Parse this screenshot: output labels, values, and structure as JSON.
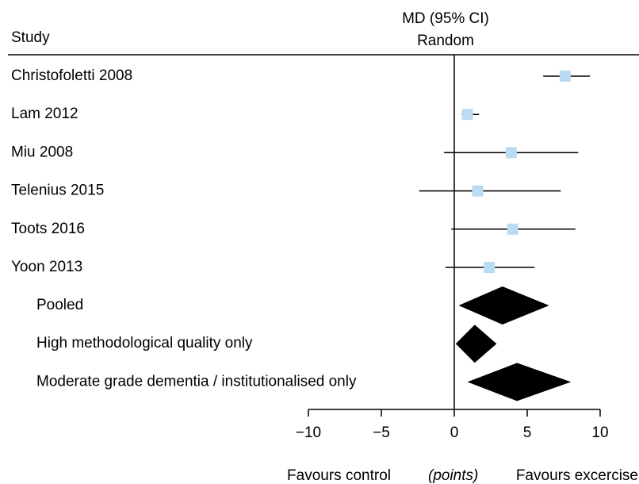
{
  "chart_data": {
    "type": "forest",
    "title": [
      "MD (95% CI)",
      "Random"
    ],
    "column_header": "Study",
    "studies": [
      {
        "name": "Christofoletti 2008",
        "estimate": 7.6,
        "lower": 6.1,
        "upper": 9.3
      },
      {
        "name": "Lam 2012",
        "estimate": 0.9,
        "lower": 0.5,
        "upper": 1.7
      },
      {
        "name": "Miu 2008",
        "estimate": 3.9,
        "lower": -0.7,
        "upper": 8.5
      },
      {
        "name": "Telenius 2015",
        "estimate": 1.6,
        "lower": -2.4,
        "upper": 7.3
      },
      {
        "name": "Toots 2016",
        "estimate": 4.0,
        "lower": -0.2,
        "upper": 8.3
      },
      {
        "name": "Yoon 2013",
        "estimate": 2.4,
        "lower": -0.6,
        "upper": 5.5
      }
    ],
    "pooled": [
      {
        "name": "Pooled",
        "estimate": 3.3,
        "lower": 0.3,
        "upper": 6.5
      },
      {
        "name": "High methodological quality only",
        "estimate": 1.4,
        "lower": 0.1,
        "upper": 2.9
      },
      {
        "name": "Moderate grade dementia / institutionalised only",
        "estimate": 4.3,
        "lower": 0.9,
        "upper": 8.0
      }
    ],
    "square_color": "#b9dcf2",
    "diamond_color": "#000000",
    "xlim": [
      -10,
      10
    ],
    "xticks": [
      {
        "value": -10,
        "label": "−10"
      },
      {
        "value": -5,
        "label": "−5"
      },
      0,
      5,
      10
    ],
    "xlabel_left": "Favours control",
    "xlabel_unit": "(points)",
    "xlabel_right": "Favours excercise"
  }
}
